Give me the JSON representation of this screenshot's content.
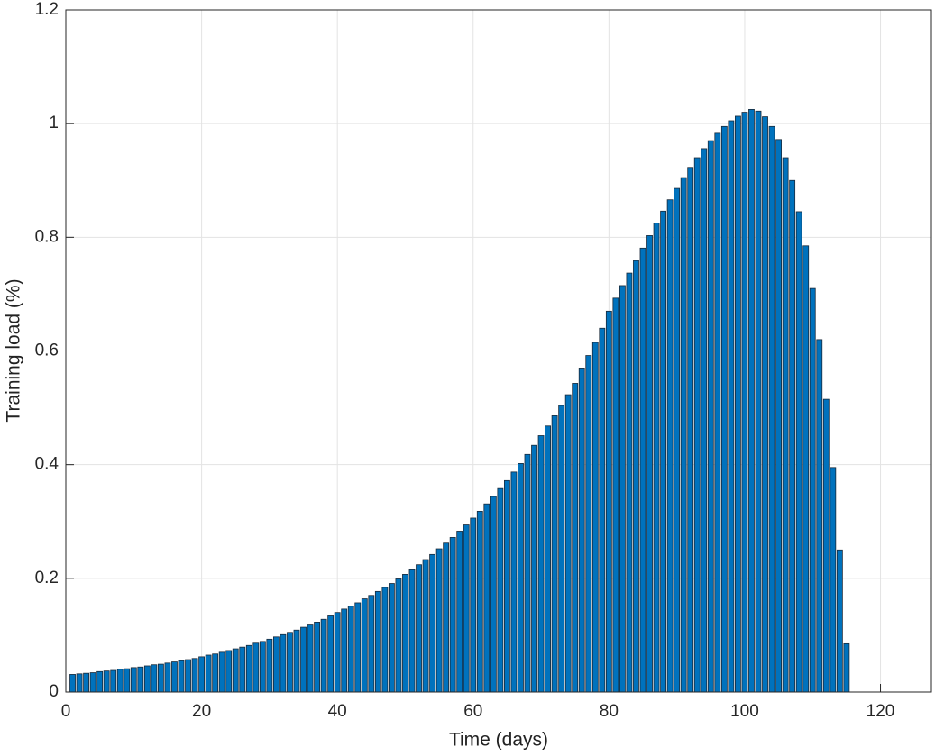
{
  "chart_data": {
    "type": "bar",
    "xlabel": "Time (days)",
    "ylabel": "Training load (%)",
    "x": [
      1,
      2,
      3,
      4,
      5,
      6,
      7,
      8,
      9,
      10,
      11,
      12,
      13,
      14,
      15,
      16,
      17,
      18,
      19,
      20,
      21,
      22,
      23,
      24,
      25,
      26,
      27,
      28,
      29,
      30,
      31,
      32,
      33,
      34,
      35,
      36,
      37,
      38,
      39,
      40,
      41,
      42,
      43,
      44,
      45,
      46,
      47,
      48,
      49,
      50,
      51,
      52,
      53,
      54,
      55,
      56,
      57,
      58,
      59,
      60,
      61,
      62,
      63,
      64,
      65,
      66,
      67,
      68,
      69,
      70,
      71,
      72,
      73,
      74,
      75,
      76,
      77,
      78,
      79,
      80,
      81,
      82,
      83,
      84,
      85,
      86,
      87,
      88,
      89,
      90,
      91,
      92,
      93,
      94,
      95,
      96,
      97,
      98,
      99,
      100,
      101,
      102,
      103,
      104,
      105,
      106,
      107,
      108,
      109,
      110,
      111,
      112,
      113,
      114,
      115
    ],
    "values": [
      0.031,
      0.032,
      0.033,
      0.034,
      0.036,
      0.037,
      0.038,
      0.04,
      0.041,
      0.043,
      0.044,
      0.046,
      0.048,
      0.049,
      0.051,
      0.053,
      0.055,
      0.057,
      0.059,
      0.062,
      0.065,
      0.067,
      0.07,
      0.073,
      0.076,
      0.079,
      0.082,
      0.086,
      0.089,
      0.093,
      0.097,
      0.101,
      0.105,
      0.109,
      0.114,
      0.118,
      0.123,
      0.128,
      0.134,
      0.14,
      0.146,
      0.151,
      0.157,
      0.164,
      0.17,
      0.177,
      0.184,
      0.191,
      0.199,
      0.207,
      0.215,
      0.224,
      0.233,
      0.242,
      0.252,
      0.262,
      0.272,
      0.283,
      0.294,
      0.306,
      0.318,
      0.331,
      0.344,
      0.358,
      0.372,
      0.387,
      0.402,
      0.418,
      0.434,
      0.451,
      0.468,
      0.486,
      0.504,
      0.523,
      0.543,
      0.57,
      0.592,
      0.615,
      0.64,
      0.67,
      0.693,
      0.715,
      0.737,
      0.759,
      0.781,
      0.803,
      0.825,
      0.846,
      0.866,
      0.886,
      0.905,
      0.923,
      0.94,
      0.956,
      0.97,
      0.983,
      0.995,
      1.005,
      1.013,
      1.02,
      1.025,
      1.022,
      1.012,
      0.995,
      0.972,
      0.94,
      0.9,
      0.845,
      0.785,
      0.71,
      0.62,
      0.515,
      0.395,
      0.25,
      0.085
    ],
    "color": "#0072bd",
    "xlim": [
      0,
      127.5
    ],
    "xticks": [
      0,
      20,
      40,
      60,
      80,
      100,
      120
    ],
    "ylim": [
      0,
      1.2
    ],
    "yticks": [
      0,
      0.2,
      0.4,
      0.6,
      0.8,
      1,
      1.2
    ],
    "grid": true
  }
}
